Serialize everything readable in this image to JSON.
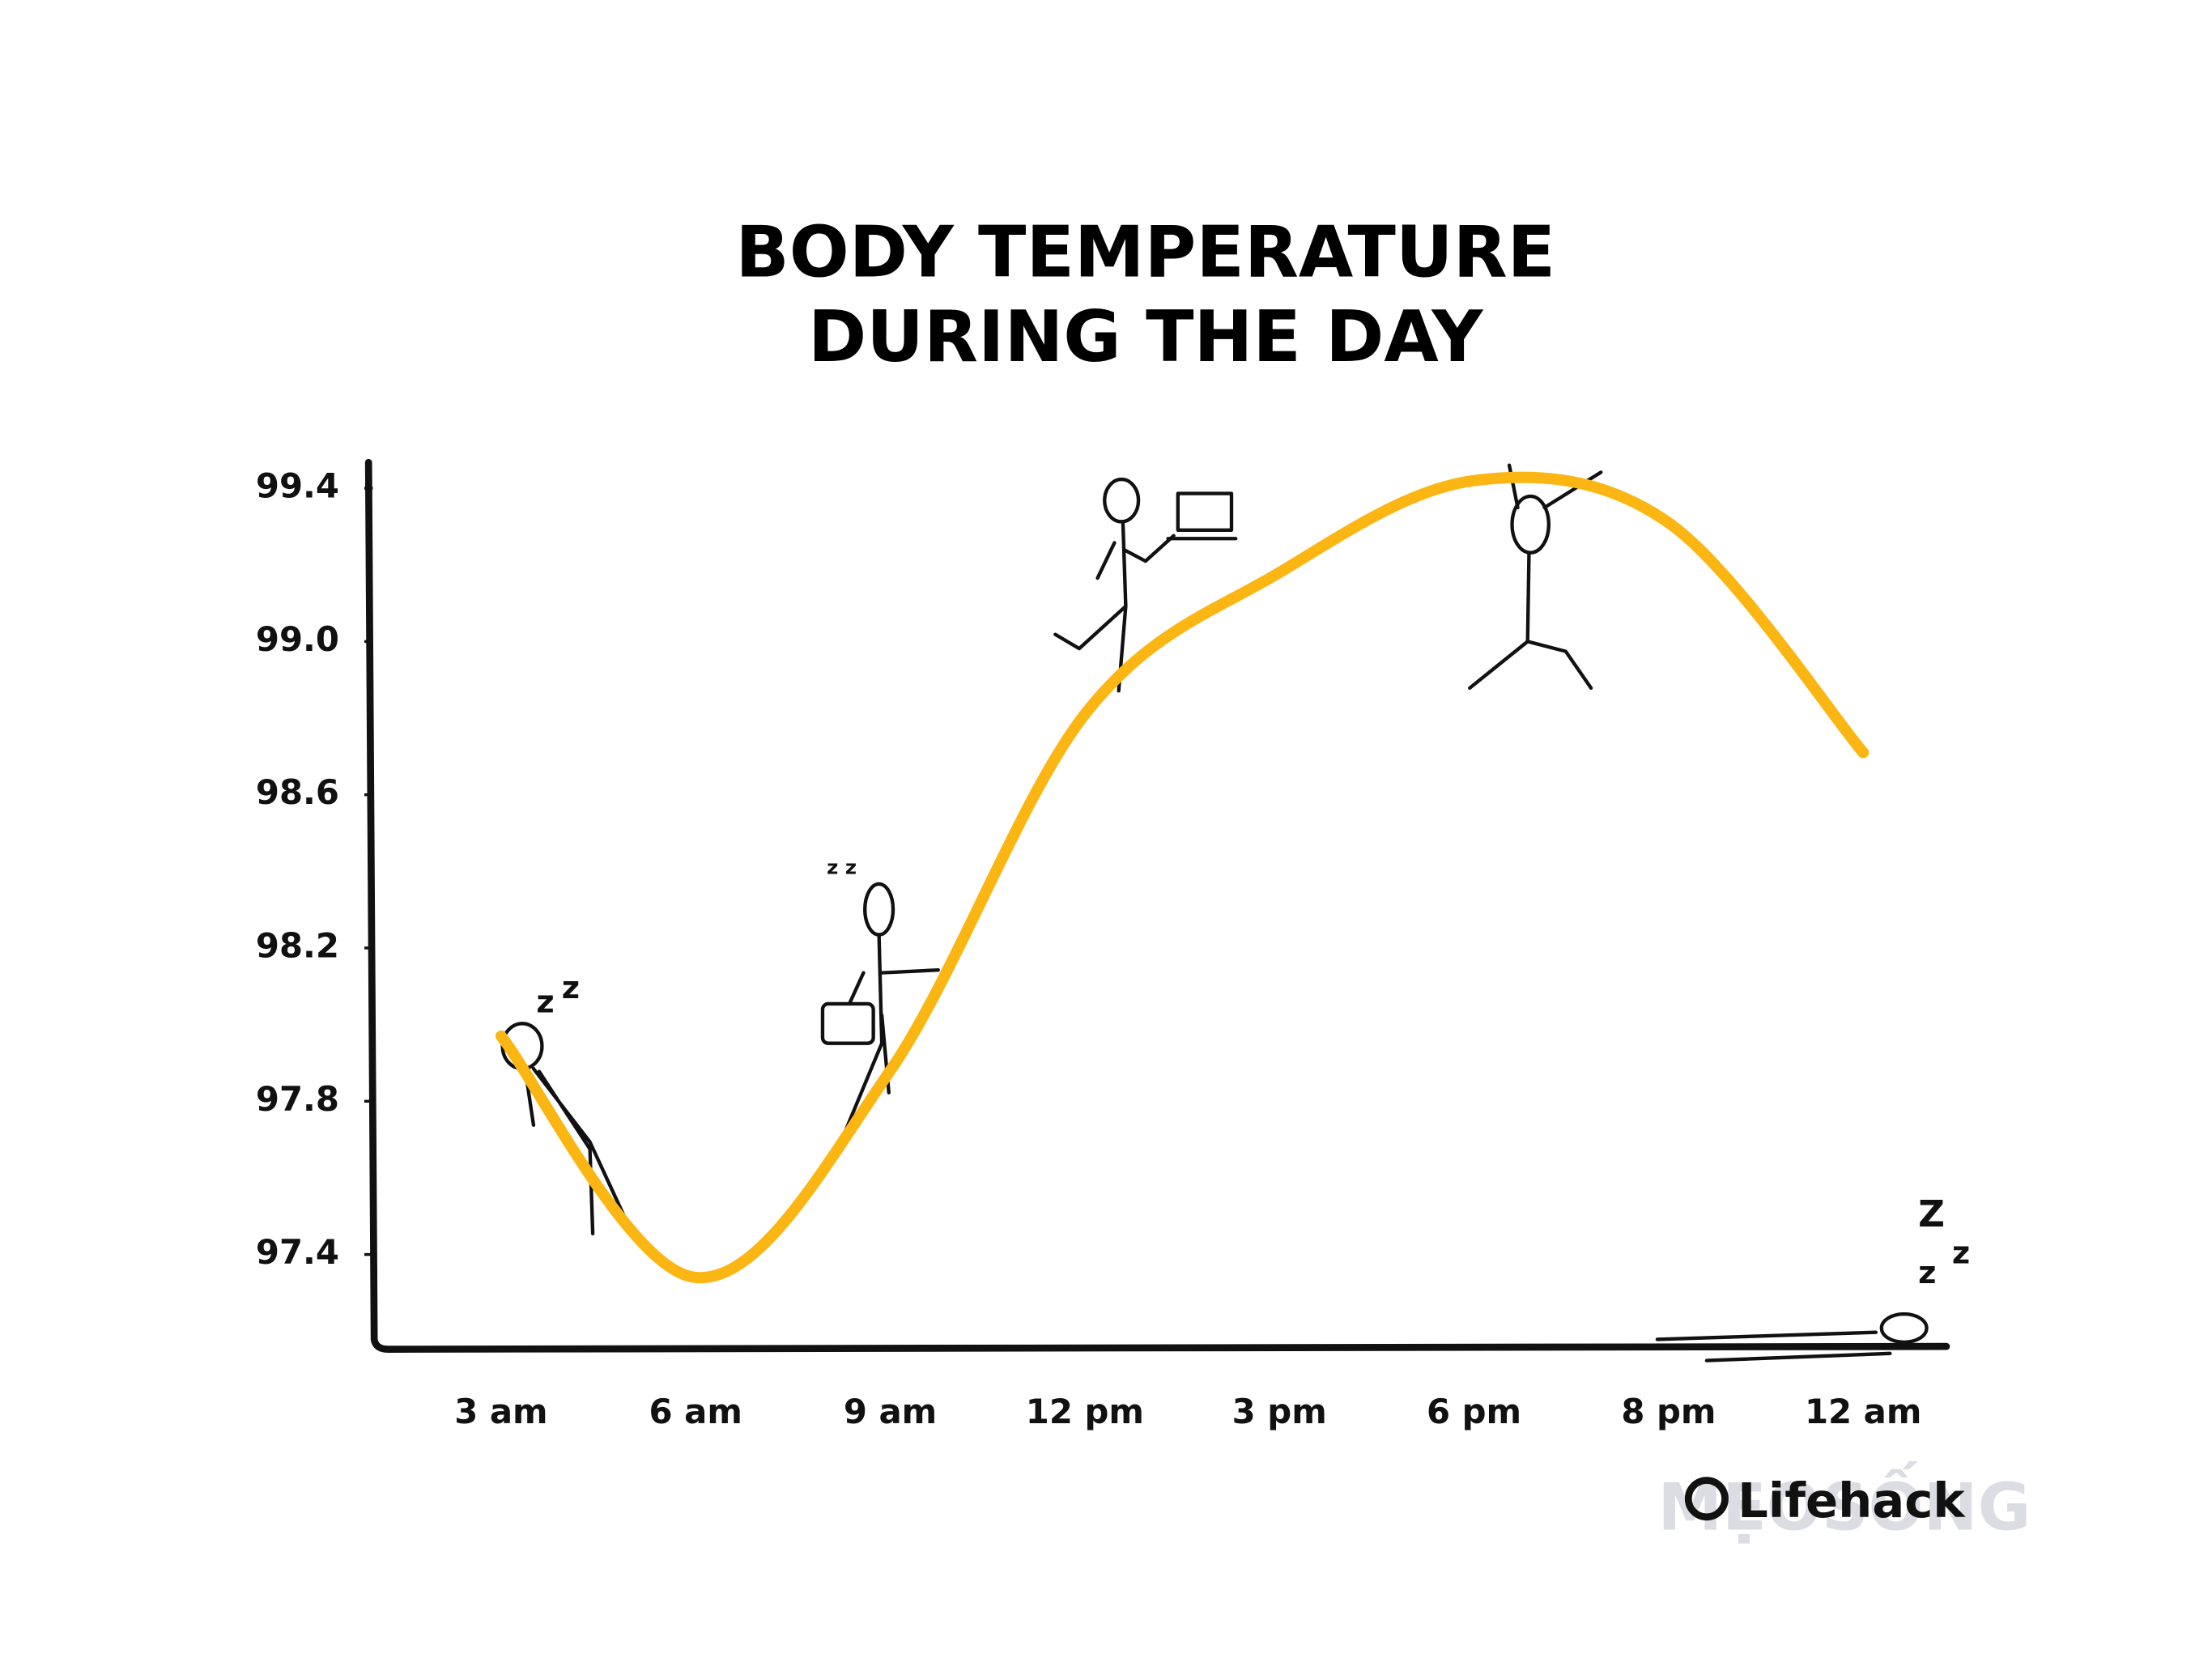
{
  "chart_data": {
    "type": "line",
    "title": [
      "BODY TEMPERATURE",
      "DURING THE DAY"
    ],
    "categories": [
      "3 am",
      "6 am",
      "9 am",
      "12 pm",
      "3 pm",
      "6 pm",
      "8 pm",
      "12 am"
    ],
    "series": [
      {
        "name": "Body temperature",
        "color": "#fbb613",
        "values": [
          97.97,
          97.34,
          97.88,
          98.81,
          99.18,
          99.42,
          99.31,
          98.71
        ]
      }
    ],
    "ylim": [
      97.16,
      99.46
    ],
    "yticks": [
      97.4,
      97.8,
      98.2,
      98.6,
      {
        "value": 99,
        "label": "99.0"
      },
      99.4
    ],
    "grid": false,
    "credit": "Lifehack",
    "watermark": "MẸOSỐNG"
  }
}
